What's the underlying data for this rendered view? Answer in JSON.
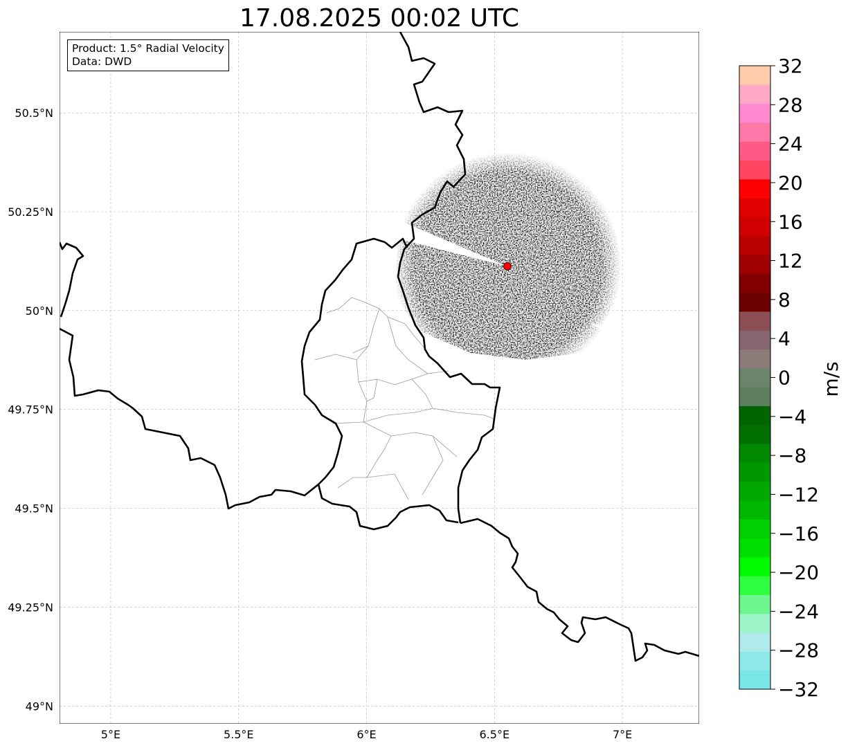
{
  "title": "17.08.2025 00:02 UTC",
  "info": {
    "product": "Product: 1.5° Radial Velocity",
    "source": "Data: DWD"
  },
  "map": {
    "lon_range": [
      4.8,
      7.3
    ],
    "lat_range": [
      48.955,
      50.705
    ],
    "x_ticks": [
      {
        "value": 5.0,
        "label": "5°E"
      },
      {
        "value": 5.5,
        "label": "5.5°E"
      },
      {
        "value": 6.0,
        "label": "6°E"
      },
      {
        "value": 6.5,
        "label": "6.5°E"
      },
      {
        "value": 7.0,
        "label": "7°E"
      }
    ],
    "y_ticks": [
      {
        "value": 50.5,
        "label": "50.5°N"
      },
      {
        "value": 50.25,
        "label": "50.25°N"
      },
      {
        "value": 50.0,
        "label": "50°N"
      },
      {
        "value": 49.75,
        "label": "49.75°N"
      },
      {
        "value": 49.5,
        "label": "49.5°N"
      },
      {
        "value": 49.25,
        "label": "49.25°N"
      },
      {
        "value": 49.0,
        "label": "49°N"
      }
    ],
    "gridlines": true,
    "radar_site": {
      "lon": 6.548,
      "lat": 50.11,
      "color": "#ff0000"
    },
    "echo_colors": {
      "inbound_strong": "#007000",
      "inbound_weak": "#5f8a5f",
      "outbound_weak": "#8a6068",
      "outbound_strong": "#8b0000"
    }
  },
  "colorbar": {
    "label": "m/s",
    "min": -32,
    "max": 32,
    "tick_labels": [
      "32",
      "28",
      "24",
      "20",
      "16",
      "12",
      "8",
      "4",
      "0",
      "−4",
      "−8",
      "−12",
      "−16",
      "−20",
      "−24",
      "−28",
      "−32"
    ],
    "colors": [
      "#7ae5e6",
      "#8ee8ea",
      "#aeebea",
      "#9ef5c9",
      "#6cf78f",
      "#2eff3e",
      "#00fa00",
      "#00e000",
      "#00d000",
      "#00b800",
      "#00a800",
      "#009800",
      "#008800",
      "#006f00",
      "#006400",
      "#5d7f5d",
      "#6b856b",
      "#8a7a78",
      "#87656f",
      "#8a4e54",
      "#6b0000",
      "#820000",
      "#a00000",
      "#b80000",
      "#d00000",
      "#e00000",
      "#ff0000",
      "#ff4560",
      "#ff5a85",
      "#ff78a8",
      "#ff88d0",
      "#ffa8c8",
      "#ffcbaa"
    ]
  }
}
